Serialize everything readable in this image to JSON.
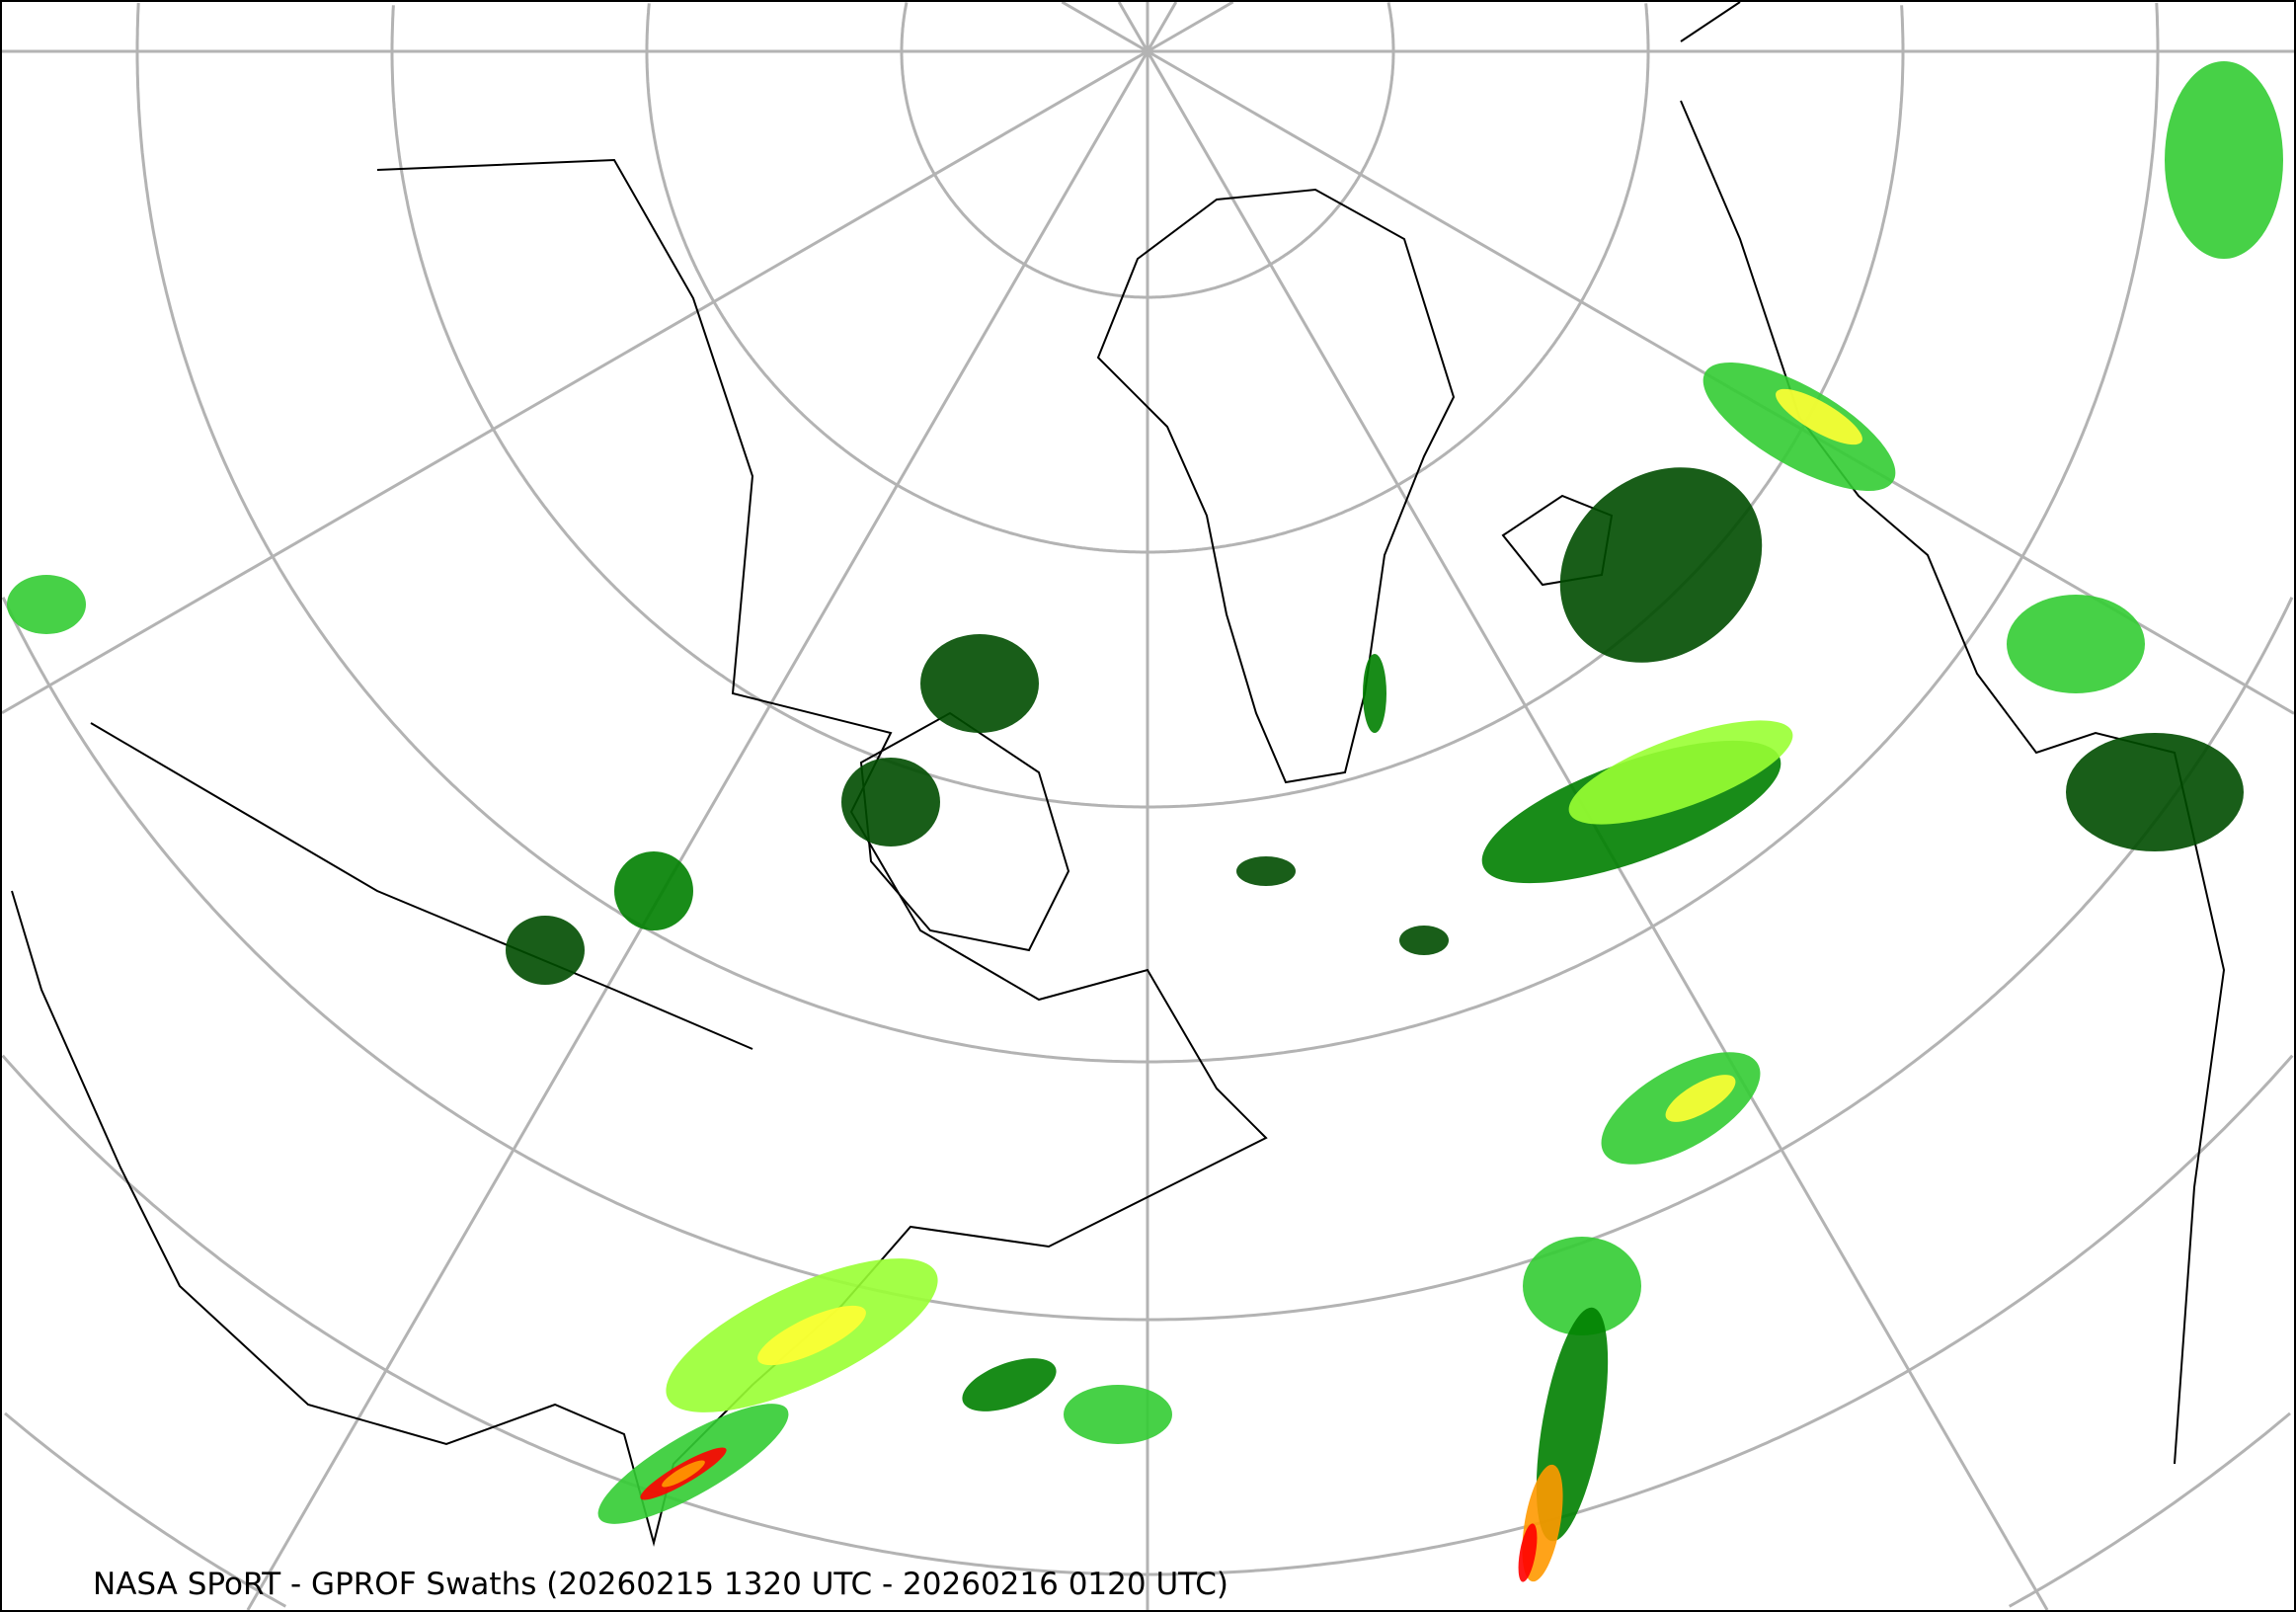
{
  "caption": "NASA SPoRT - GPROF Swaths (20260215 1320 UTC - 20260216 0120 UTC)",
  "map": {
    "projection": "north-polar-stereographic",
    "graticule_color": "#b3b3b3",
    "coastline_color": "#000000",
    "precip_colors": [
      "#004d00",
      "#008000",
      "#33cc33",
      "#99ff33",
      "#ffff33",
      "#ff9900",
      "#ff0000"
    ]
  }
}
